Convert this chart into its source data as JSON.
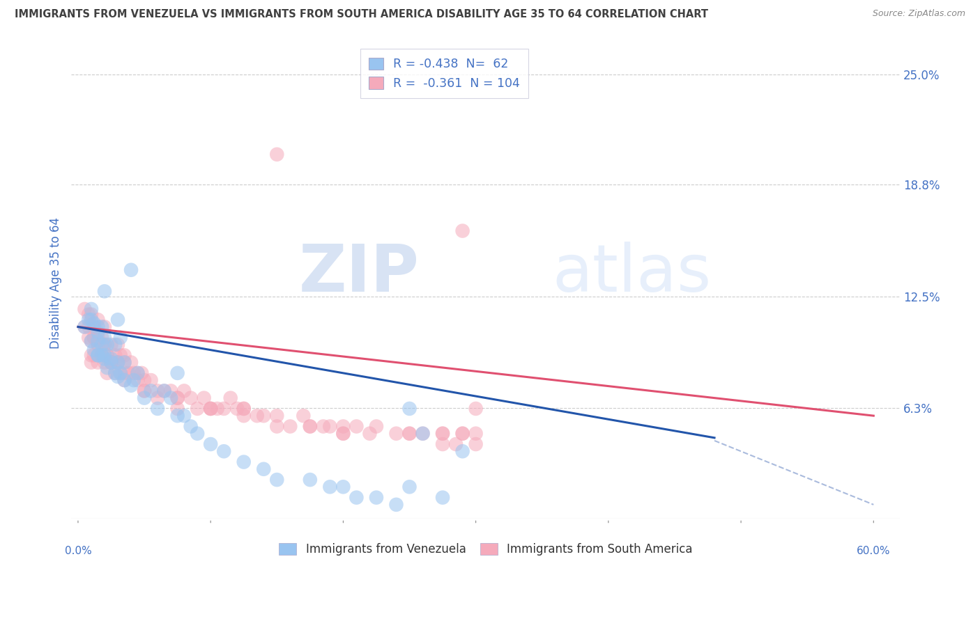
{
  "title": "IMMIGRANTS FROM VENEZUELA VS IMMIGRANTS FROM SOUTH AMERICA DISABILITY AGE 35 TO 64 CORRELATION CHART",
  "source": "Source: ZipAtlas.com",
  "ylabel": "Disability Age 35 to 64",
  "xlim": [
    -0.005,
    0.62
  ],
  "ylim": [
    0.0,
    0.265
  ],
  "yticks": [
    0.0625,
    0.125,
    0.188,
    0.25
  ],
  "yticklabels": [
    "6.3%",
    "12.5%",
    "18.8%",
    "25.0%"
  ],
  "blue_color": "#99C4F0",
  "pink_color": "#F5AABB",
  "blue_line_color": "#2255AA",
  "pink_line_color": "#E05070",
  "dashed_line_color": "#AABBDD",
  "R_blue": -0.438,
  "N_blue": 62,
  "R_pink": -0.361,
  "N_pink": 104,
  "legend_label_blue": "Immigrants from Venezuela",
  "legend_label_pink": "Immigrants from South America",
  "watermark_zip": "ZIP",
  "watermark_atlas": "atlas",
  "background_color": "#FFFFFF",
  "grid_color": "#CCCCCC",
  "title_color": "#404040",
  "axis_label_color": "#4472C4",
  "blue_line_x0": 0.0,
  "blue_line_x1": 0.6,
  "blue_line_y0": 0.108,
  "blue_line_y1": 0.03,
  "pink_line_x0": 0.0,
  "pink_line_x1": 0.6,
  "pink_line_y0": 0.108,
  "pink_line_y1": 0.058,
  "dash_line_x0": 0.48,
  "dash_line_x1": 0.6,
  "dash_line_y0": 0.044,
  "dash_line_y1": 0.008,
  "blue_scatter_x": [
    0.005,
    0.008,
    0.01,
    0.01,
    0.012,
    0.012,
    0.015,
    0.015,
    0.015,
    0.015,
    0.018,
    0.018,
    0.018,
    0.02,
    0.02,
    0.02,
    0.022,
    0.022,
    0.025,
    0.025,
    0.028,
    0.028,
    0.03,
    0.03,
    0.032,
    0.032,
    0.035,
    0.035,
    0.04,
    0.04,
    0.042,
    0.045,
    0.05,
    0.055,
    0.06,
    0.065,
    0.07,
    0.075,
    0.08,
    0.085,
    0.09,
    0.1,
    0.11,
    0.125,
    0.14,
    0.15,
    0.175,
    0.19,
    0.2,
    0.21,
    0.225,
    0.24,
    0.25,
    0.26,
    0.275,
    0.29,
    0.01,
    0.015,
    0.02,
    0.03,
    0.075,
    0.25
  ],
  "blue_scatter_y": [
    0.108,
    0.112,
    0.1,
    0.118,
    0.095,
    0.11,
    0.092,
    0.105,
    0.108,
    0.1,
    0.092,
    0.098,
    0.108,
    0.092,
    0.102,
    0.09,
    0.085,
    0.098,
    0.09,
    0.088,
    0.082,
    0.098,
    0.088,
    0.08,
    0.082,
    0.102,
    0.078,
    0.088,
    0.14,
    0.075,
    0.078,
    0.082,
    0.068,
    0.072,
    0.062,
    0.072,
    0.068,
    0.058,
    0.058,
    0.052,
    0.048,
    0.042,
    0.038,
    0.032,
    0.028,
    0.022,
    0.022,
    0.018,
    0.018,
    0.012,
    0.012,
    0.008,
    0.018,
    0.048,
    0.012,
    0.038,
    0.112,
    0.092,
    0.128,
    0.112,
    0.082,
    0.062
  ],
  "pink_scatter_x": [
    0.005,
    0.005,
    0.008,
    0.008,
    0.01,
    0.01,
    0.01,
    0.012,
    0.012,
    0.012,
    0.015,
    0.015,
    0.015,
    0.018,
    0.018,
    0.02,
    0.02,
    0.02,
    0.022,
    0.022,
    0.025,
    0.025,
    0.028,
    0.028,
    0.03,
    0.03,
    0.032,
    0.032,
    0.035,
    0.035,
    0.038,
    0.04,
    0.042,
    0.045,
    0.048,
    0.05,
    0.055,
    0.06,
    0.065,
    0.07,
    0.075,
    0.08,
    0.085,
    0.09,
    0.095,
    0.1,
    0.105,
    0.11,
    0.115,
    0.12,
    0.125,
    0.135,
    0.14,
    0.15,
    0.16,
    0.17,
    0.175,
    0.185,
    0.19,
    0.2,
    0.21,
    0.22,
    0.225,
    0.24,
    0.25,
    0.26,
    0.275,
    0.285,
    0.29,
    0.3,
    0.008,
    0.012,
    0.015,
    0.02,
    0.022,
    0.025,
    0.03,
    0.035,
    0.045,
    0.05,
    0.06,
    0.075,
    0.1,
    0.125,
    0.15,
    0.175,
    0.2,
    0.25,
    0.275,
    0.15,
    0.01,
    0.015,
    0.025,
    0.035,
    0.05,
    0.075,
    0.1,
    0.125,
    0.2,
    0.275,
    0.3,
    0.29,
    0.3,
    0.29
  ],
  "pink_scatter_y": [
    0.108,
    0.118,
    0.102,
    0.115,
    0.088,
    0.1,
    0.115,
    0.092,
    0.102,
    0.108,
    0.088,
    0.098,
    0.112,
    0.092,
    0.102,
    0.088,
    0.098,
    0.108,
    0.082,
    0.092,
    0.088,
    0.098,
    0.082,
    0.092,
    0.088,
    0.098,
    0.082,
    0.092,
    0.082,
    0.092,
    0.082,
    0.088,
    0.082,
    0.078,
    0.082,
    0.078,
    0.078,
    0.072,
    0.072,
    0.072,
    0.068,
    0.072,
    0.068,
    0.062,
    0.068,
    0.062,
    0.062,
    0.062,
    0.068,
    0.062,
    0.062,
    0.058,
    0.058,
    0.058,
    0.052,
    0.058,
    0.052,
    0.052,
    0.052,
    0.048,
    0.052,
    0.048,
    0.052,
    0.048,
    0.048,
    0.048,
    0.042,
    0.042,
    0.048,
    0.042,
    0.108,
    0.102,
    0.102,
    0.098,
    0.092,
    0.088,
    0.088,
    0.088,
    0.082,
    0.072,
    0.068,
    0.062,
    0.062,
    0.058,
    0.052,
    0.052,
    0.052,
    0.048,
    0.048,
    0.205,
    0.092,
    0.098,
    0.088,
    0.078,
    0.072,
    0.068,
    0.062,
    0.062,
    0.048,
    0.048,
    0.062,
    0.162,
    0.048,
    0.048
  ]
}
